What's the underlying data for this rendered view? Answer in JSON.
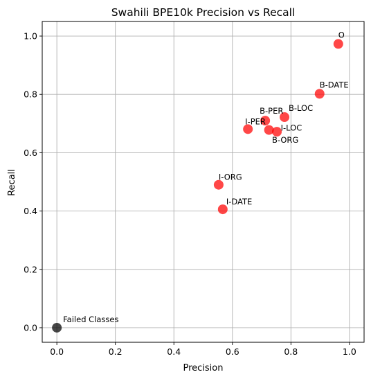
{
  "chart_data": {
    "type": "scatter",
    "title": "Swahili BPE10k Precision vs Recall",
    "xlabel": "Precision",
    "ylabel": "Recall",
    "xlim": [
      -0.05,
      1.05
    ],
    "ylim": [
      -0.05,
      1.05
    ],
    "xticks": [
      0.0,
      0.2,
      0.4,
      0.6,
      0.8,
      1.0
    ],
    "yticks": [
      0.0,
      0.2,
      0.4,
      0.6,
      0.8,
      1.0
    ],
    "xtick_labels": [
      "0.0",
      "0.2",
      "0.4",
      "0.6",
      "0.8",
      "1.0"
    ],
    "ytick_labels": [
      "0.0",
      "0.2",
      "0.4",
      "0.6",
      "0.8",
      "1.0"
    ],
    "grid": true,
    "series": [
      {
        "color": "#ff0000",
        "points": [
          {
            "label": "O",
            "x": 0.962,
            "y": 0.973
          },
          {
            "label": "B-DATE",
            "x": 0.898,
            "y": 0.802
          },
          {
            "label": "B-LOC",
            "x": 0.778,
            "y": 0.722
          },
          {
            "label": "B-PER",
            "x": 0.712,
            "y": 0.71
          },
          {
            "label": "I-LOC",
            "x": 0.725,
            "y": 0.678
          },
          {
            "label": "B-ORG",
            "x": 0.752,
            "y": 0.672
          },
          {
            "label": "I-PER",
            "x": 0.653,
            "y": 0.681
          },
          {
            "label": "I-ORG",
            "x": 0.553,
            "y": 0.49
          },
          {
            "label": "I-DATE",
            "x": 0.567,
            "y": 0.406
          }
        ]
      },
      {
        "color": "#000000",
        "points": [
          {
            "label": "Failed Classes",
            "x": 0.0,
            "y": 0.0
          }
        ]
      }
    ]
  }
}
